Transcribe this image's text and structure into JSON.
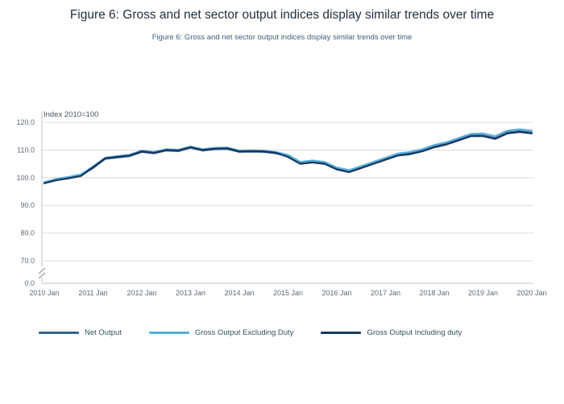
{
  "page": {
    "title": "Figure 6: Gross and net sector output indices display similar trends over time",
    "subtitle": "Figure 6: Gross and net sector output indices display similar trends over time"
  },
  "chart_data": {
    "type": "line",
    "title": "Figure 6: Gross and net sector output indices display similar trends over time",
    "subtitle": "Figure 6: Gross and net sector output indices display similar trends over time",
    "ylabel": "Index 2010=100",
    "xlabel": "",
    "ylim": [
      0,
      120
    ],
    "y_axis_break_between": [
      0,
      70
    ],
    "yticks": [
      0,
      70,
      80,
      90,
      100,
      110,
      120
    ],
    "ytick_format": "one_decimal",
    "grid": true,
    "legend_position": "bottom",
    "x_tick_every": 4,
    "categories": [
      "2010 Jan",
      "2010 Apr",
      "2010 Jul",
      "2010 Oct",
      "2011 Jan",
      "2011 Apr",
      "2011 Jul",
      "2011 Oct",
      "2012 Jan",
      "2012 Apr",
      "2012 Jul",
      "2012 Oct",
      "2013 Jan",
      "2013 Apr",
      "2013 Jul",
      "2013 Oct",
      "2014 Jan",
      "2014 Apr",
      "2014 Jul",
      "2014 Oct",
      "2015 Jan",
      "2015 Apr",
      "2015 Jul",
      "2015 Oct",
      "2016 Jan",
      "2016 Apr",
      "2016 Jul",
      "2016 Oct",
      "2017 Jan",
      "2017 Apr",
      "2017 Jul",
      "2017 Oct",
      "2018 Jan",
      "2018 Apr",
      "2018 Jul",
      "2018 Oct",
      "2019 Jan",
      "2019 Apr",
      "2019 Jul",
      "2019 Oct",
      "2020 Jan"
    ],
    "series": [
      {
        "name": "Net Output",
        "color": "#35618f",
        "values": [
          98.2,
          99.3,
          100.0,
          100.8,
          103.5,
          106.8,
          107.3,
          107.8,
          109.3,
          108.8,
          109.8,
          109.6,
          110.8,
          109.8,
          110.3,
          110.4,
          109.3,
          109.4,
          109.3,
          108.8,
          107.8,
          105.3,
          105.8,
          105.3,
          103.3,
          102.3,
          103.8,
          105.3,
          106.8,
          108.3,
          108.8,
          109.8,
          111.3,
          112.3,
          113.8,
          115.3,
          115.3,
          114.3,
          116.3,
          116.8,
          116.3
        ]
      },
      {
        "name": "Gross Output Excluding Duty",
        "color": "#56aede",
        "values": [
          98.4,
          99.6,
          100.3,
          101.2,
          104.0,
          107.2,
          107.8,
          108.3,
          109.8,
          109.3,
          110.3,
          110.1,
          111.3,
          110.3,
          110.8,
          110.9,
          109.8,
          109.9,
          109.8,
          109.3,
          108.2,
          105.7,
          106.2,
          105.7,
          103.7,
          102.7,
          104.2,
          105.7,
          107.2,
          108.7,
          109.3,
          110.3,
          111.8,
          112.8,
          114.3,
          115.8,
          116.0,
          115.0,
          117.0,
          117.5,
          117.0
        ]
      },
      {
        "name": "Gross Output Including duty",
        "color": "#17375e",
        "values": [
          98.0,
          99.1,
          99.8,
          100.6,
          103.8,
          107.0,
          107.5,
          108.0,
          109.5,
          109.0,
          110.0,
          109.8,
          111.0,
          110.0,
          110.5,
          110.6,
          109.5,
          109.6,
          109.5,
          109.0,
          107.5,
          105.0,
          105.5,
          105.0,
          103.0,
          102.0,
          103.5,
          105.0,
          106.5,
          108.0,
          108.5,
          109.5,
          111.0,
          112.0,
          113.5,
          115.0,
          115.0,
          114.0,
          116.0,
          116.5,
          116.0
        ]
      }
    ]
  }
}
